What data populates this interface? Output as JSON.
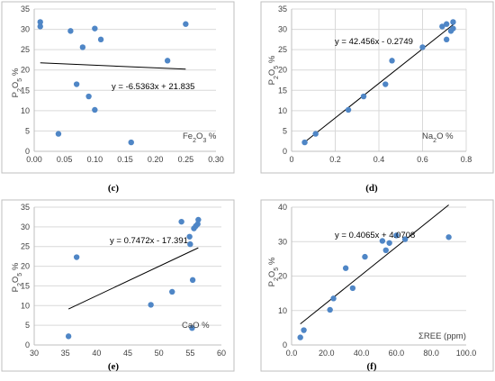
{
  "chart_data": [
    {
      "type": "scatter",
      "caption": "(c)",
      "xlabel": "Fe2O3 %",
      "ylabel": "P2O5 %",
      "xlabel_parts": [
        {
          "t": "Fe"
        },
        {
          "t": "2",
          "sub": true
        },
        {
          "t": "O"
        },
        {
          "t": "3",
          "sub": true
        },
        {
          "t": " %"
        }
      ],
      "ylabel_parts": [
        {
          "t": "P"
        },
        {
          "t": "2",
          "sub": true
        },
        {
          "t": "O"
        },
        {
          "t": "5",
          "sub": true
        },
        {
          "t": " %"
        }
      ],
      "xlim": [
        0,
        0.3
      ],
      "ylim": [
        0,
        35
      ],
      "xticks": [
        0,
        0.05,
        0.1,
        0.15,
        0.2,
        0.25,
        0.3
      ],
      "xtick_labels": [
        "0.00",
        "0.05",
        "0.10",
        "0.15",
        "0.20",
        "0.25",
        "0.30"
      ],
      "yticks": [
        0,
        5,
        10,
        15,
        20,
        25,
        30,
        35
      ],
      "ytick_labels": [
        "0",
        "5",
        "10",
        "15",
        "20",
        "25",
        "30",
        "35"
      ],
      "grid": "horizontal",
      "equation": "y = -6.5363x + 21.835",
      "trendline": {
        "slope": -6.5363,
        "intercept": 21.835,
        "x_range": [
          0.01,
          0.25
        ]
      },
      "points": [
        {
          "x": 0.01,
          "y": 31.8
        },
        {
          "x": 0.01,
          "y": 30.7
        },
        {
          "x": 0.04,
          "y": 4.3
        },
        {
          "x": 0.06,
          "y": 29.6
        },
        {
          "x": 0.07,
          "y": 16.5
        },
        {
          "x": 0.08,
          "y": 25.6
        },
        {
          "x": 0.09,
          "y": 13.5
        },
        {
          "x": 0.1,
          "y": 30.2
        },
        {
          "x": 0.1,
          "y": 10.2
        },
        {
          "x": 0.11,
          "y": 27.5
        },
        {
          "x": 0.16,
          "y": 2.2
        },
        {
          "x": 0.22,
          "y": 22.3
        },
        {
          "x": 0.25,
          "y": 31.3
        }
      ]
    },
    {
      "type": "scatter",
      "caption": "(d)",
      "xlabel": "Na2O %",
      "ylabel": "P2O5 %",
      "xlabel_parts": [
        {
          "t": "Na"
        },
        {
          "t": "2",
          "sub": true
        },
        {
          "t": "O %"
        }
      ],
      "ylabel_parts": [
        {
          "t": "P"
        },
        {
          "t": "2",
          "sub": true
        },
        {
          "t": "O"
        },
        {
          "t": "5",
          "sub": true
        },
        {
          "t": " %"
        }
      ],
      "xlim": [
        0,
        0.8
      ],
      "ylim": [
        0,
        35
      ],
      "xticks": [
        0,
        0.2,
        0.4,
        0.6,
        0.8
      ],
      "xtick_labels": [
        "0",
        "0.2",
        "0.4",
        "0.6",
        "0.8"
      ],
      "yticks": [
        0,
        5,
        10,
        15,
        20,
        25,
        30,
        35
      ],
      "ytick_labels": [
        "0",
        "5",
        "10",
        "15",
        "20",
        "25",
        "30",
        "35"
      ],
      "grid": "both",
      "equation": "y = 42.456x - 0.2749",
      "trendline": {
        "slope": 42.456,
        "intercept": -0.2749,
        "x_range": [
          0.06,
          0.75
        ]
      },
      "points": [
        {
          "x": 0.06,
          "y": 2.2
        },
        {
          "x": 0.11,
          "y": 4.3
        },
        {
          "x": 0.26,
          "y": 10.2
        },
        {
          "x": 0.33,
          "y": 13.5
        },
        {
          "x": 0.43,
          "y": 16.5
        },
        {
          "x": 0.46,
          "y": 22.3
        },
        {
          "x": 0.6,
          "y": 25.6
        },
        {
          "x": 0.69,
          "y": 30.7
        },
        {
          "x": 0.71,
          "y": 31.3
        },
        {
          "x": 0.71,
          "y": 27.5
        },
        {
          "x": 0.73,
          "y": 29.6
        },
        {
          "x": 0.74,
          "y": 30.2
        },
        {
          "x": 0.74,
          "y": 31.8
        }
      ]
    },
    {
      "type": "scatter",
      "caption": "(e)",
      "xlabel": "CaO %",
      "ylabel": "P2O5 %",
      "xlabel_parts": [
        {
          "t": "CaO %"
        }
      ],
      "ylabel_parts": [
        {
          "t": "P"
        },
        {
          "t": "2",
          "sub": true
        },
        {
          "t": "O"
        },
        {
          "t": "5",
          "sub": true
        },
        {
          "t": " %"
        }
      ],
      "xlim": [
        30,
        60
      ],
      "ylim": [
        0,
        35
      ],
      "xticks": [
        30,
        35,
        40,
        45,
        50,
        55,
        60
      ],
      "xtick_labels": [
        "30",
        "35",
        "40",
        "45",
        "50",
        "55",
        "60"
      ],
      "yticks": [
        0,
        5,
        10,
        15,
        20,
        25,
        30,
        35
      ],
      "ytick_labels": [
        "0",
        "5",
        "10",
        "15",
        "20",
        "25",
        "30",
        "35"
      ],
      "grid": "horizontal",
      "equation": "y = 0.7472x - 17.391",
      "trendline": {
        "slope": 0.7472,
        "intercept": -17.391,
        "x_range": [
          35.5,
          56.3
        ]
      },
      "points": [
        {
          "x": 35.5,
          "y": 2.2
        },
        {
          "x": 36.8,
          "y": 22.3
        },
        {
          "x": 48.7,
          "y": 10.2
        },
        {
          "x": 52.1,
          "y": 13.5
        },
        {
          "x": 53.6,
          "y": 31.3
        },
        {
          "x": 54.9,
          "y": 27.5
        },
        {
          "x": 55.0,
          "y": 25.6
        },
        {
          "x": 55.3,
          "y": 4.3
        },
        {
          "x": 55.4,
          "y": 16.5
        },
        {
          "x": 55.6,
          "y": 29.6
        },
        {
          "x": 55.9,
          "y": 30.2
        },
        {
          "x": 56.2,
          "y": 30.7
        },
        {
          "x": 56.3,
          "y": 31.8
        }
      ]
    },
    {
      "type": "scatter",
      "caption": "(f)",
      "xlabel": "ΣREE (ppm)",
      "ylabel": "P2O5 %",
      "xlabel_parts": [
        {
          "t": "ΣREE (ppm)"
        }
      ],
      "ylabel_parts": [
        {
          "t": "P"
        },
        {
          "t": "2",
          "sub": true
        },
        {
          "t": "O"
        },
        {
          "t": "5",
          "sub": true
        },
        {
          "t": " %"
        }
      ],
      "xlim": [
        0,
        100
      ],
      "ylim": [
        0,
        40
      ],
      "xticks": [
        0,
        20,
        40,
        60,
        80,
        100
      ],
      "xtick_labels": [
        "0.0",
        "20.0",
        "40.0",
        "60.0",
        "80.0",
        "100.0"
      ],
      "yticks": [
        0,
        10,
        20,
        30,
        40
      ],
      "ytick_labels": [
        "0",
        "10",
        "20",
        "30",
        "40"
      ],
      "grid": "horizontal",
      "equation": "y = 0.4065x + 4.0708",
      "trendline": {
        "slope": 0.4065,
        "intercept": 4.0708,
        "x_range": [
          5,
          90
        ]
      },
      "points": [
        {
          "x": 5,
          "y": 2.2
        },
        {
          "x": 7,
          "y": 4.3
        },
        {
          "x": 22,
          "y": 10.2
        },
        {
          "x": 24,
          "y": 13.5
        },
        {
          "x": 31,
          "y": 22.3
        },
        {
          "x": 35,
          "y": 16.5
        },
        {
          "x": 42,
          "y": 25.6
        },
        {
          "x": 52,
          "y": 30.2
        },
        {
          "x": 54,
          "y": 27.5
        },
        {
          "x": 56,
          "y": 29.6
        },
        {
          "x": 60,
          "y": 31.8
        },
        {
          "x": 65,
          "y": 30.7
        },
        {
          "x": 90,
          "y": 31.3
        }
      ]
    }
  ]
}
